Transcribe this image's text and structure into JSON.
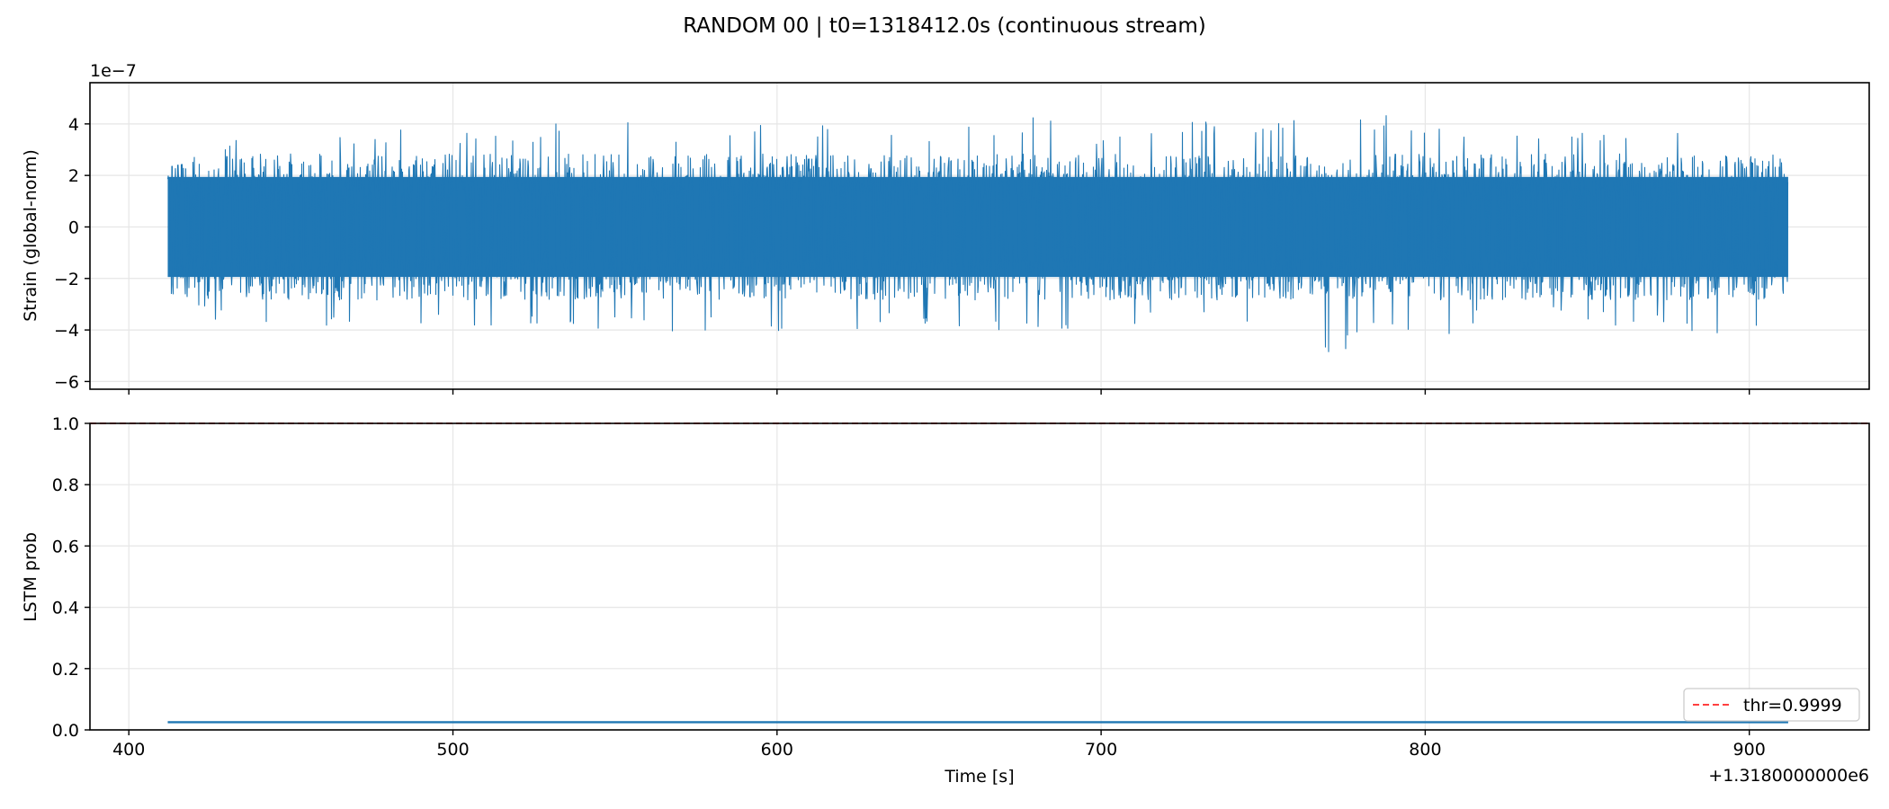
{
  "figure": {
    "title": "RANDOM 00 | t0=1318412.0s (continuous stream)",
    "xlabel": "Time [s]",
    "x_offset_label": "+1.3180000000e6"
  },
  "colors": {
    "series": "#1f77b4",
    "threshold": "#ff0000",
    "grid": "#e6e6e6"
  },
  "chart_data": [
    {
      "type": "line",
      "ylabel": "Strain (global-norm)",
      "y_scale_label": "1e−7",
      "xlim": [
        388,
        937
      ],
      "ylim": [
        -6.3,
        5.6
      ],
      "xticks": [
        400,
        500,
        600,
        700,
        800,
        900
      ],
      "yticks": [
        -6,
        -4,
        -2,
        0,
        2,
        4
      ],
      "ytick_labels": [
        "−6",
        "−4",
        "−2",
        "0",
        "2",
        "4"
      ],
      "grid": true,
      "series": [
        {
          "x_range": [
            412.0,
            912.0
          ],
          "envelope_x": [
            412,
            425,
            438,
            446,
            450,
            462,
            475,
            488,
            500,
            510,
            522,
            535,
            545,
            560,
            572,
            585,
            598,
            610,
            622,
            635,
            648,
            660,
            672,
            678,
            690,
            700,
            712,
            725,
            738,
            750,
            762,
            766,
            772,
            780,
            790,
            800,
            812,
            825,
            838,
            850,
            862,
            874,
            886,
            898,
            912
          ],
          "envelope_max": [
            2.9,
            3.3,
            3.6,
            4.2,
            4.5,
            3.8,
            3.5,
            4.0,
            3.6,
            3.9,
            3.7,
            4.3,
            4.9,
            3.9,
            3.8,
            3.6,
            4.1,
            3.7,
            4.4,
            3.8,
            3.7,
            3.9,
            3.6,
            4.6,
            3.8,
            3.5,
            4.1,
            4.3,
            3.9,
            4.1,
            4.4,
            5.1,
            4.9,
            4.2,
            4.6,
            4.2,
            3.7,
            3.6,
            3.8,
            3.7,
            3.9,
            4.0,
            4.1,
            3.9,
            4.0
          ],
          "envelope_min": [
            -3.2,
            -3.6,
            -3.9,
            -4.6,
            -4.7,
            -3.9,
            -4.1,
            -3.8,
            -3.7,
            -3.9,
            -3.8,
            -3.7,
            -4.0,
            -4.1,
            -4.2,
            -3.8,
            -4.5,
            -3.9,
            -4.0,
            -3.8,
            -3.9,
            -4.2,
            -4.0,
            -3.9,
            -4.0,
            -3.7,
            -3.8,
            -3.6,
            -3.9,
            -3.8,
            -4.0,
            -4.1,
            -5.8,
            -4.0,
            -3.9,
            -4.9,
            -3.8,
            -3.7,
            -3.6,
            -3.8,
            -3.9,
            -4.0,
            -4.1,
            -4.3,
            -3.5
          ],
          "typical_amplitude": 2.7
        }
      ]
    },
    {
      "type": "line",
      "ylabel": "LSTM prob",
      "xlim": [
        388,
        937
      ],
      "ylim": [
        0.0,
        1.0
      ],
      "xticks": [
        400,
        500,
        600,
        700,
        800,
        900
      ],
      "xtick_labels": [
        "400",
        "500",
        "600",
        "700",
        "800",
        "900"
      ],
      "yticks": [
        0.0,
        0.2,
        0.4,
        0.6,
        0.8,
        1.0
      ],
      "ytick_labels": [
        "0.0",
        "0.2",
        "0.4",
        "0.6",
        "0.8",
        "1.0"
      ],
      "grid": true,
      "series": [
        {
          "x": [
            412.0,
            912.0
          ],
          "y": [
            0.025,
            0.025
          ]
        }
      ],
      "threshold": {
        "value": 0.9999,
        "style": "dashed"
      },
      "legend": {
        "position": "lower right",
        "entries": [
          "thr=0.9999"
        ]
      }
    }
  ]
}
